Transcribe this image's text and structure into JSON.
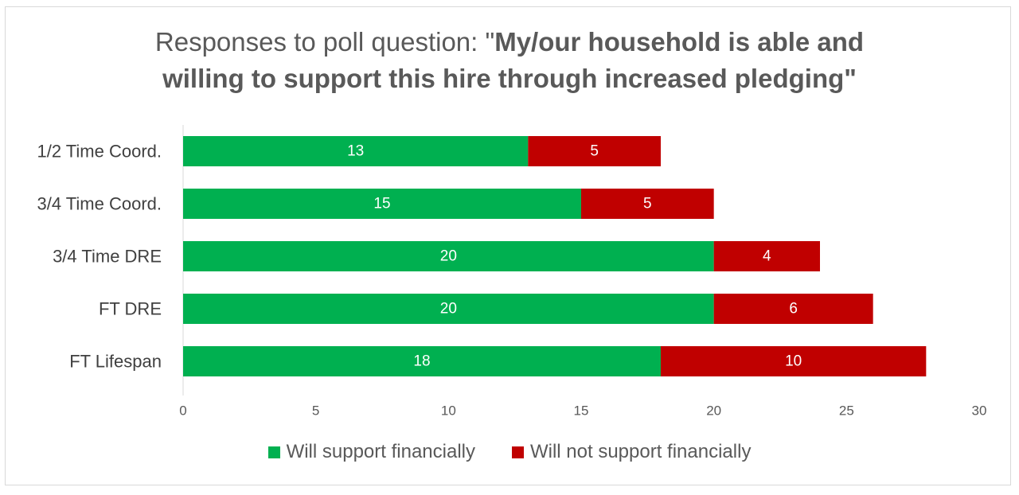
{
  "chart_data": {
    "type": "bar",
    "orientation": "horizontal",
    "stacked": true,
    "title_prefix": "Responses to poll question: \"",
    "title_bold_line1": "My/our household is able and",
    "title_bold_line2": "willing to support this hire through increased pledging\"",
    "categories": [
      "1/2 Time Coord.",
      "3/4 Time Coord.",
      "3/4 Time DRE",
      "FT DRE",
      "FT Lifespan"
    ],
    "series": [
      {
        "name": "Will support financially",
        "color": "#00b050",
        "values": [
          13,
          15,
          20,
          20,
          18
        ]
      },
      {
        "name": "Will not support financially",
        "color": "#c00000",
        "values": [
          5,
          5,
          4,
          6,
          10
        ]
      }
    ],
    "xlim": [
      0,
      30
    ],
    "x_ticks": [
      "0",
      "5",
      "10",
      "15",
      "20",
      "25",
      "30"
    ],
    "grid": false,
    "legend_position": "bottom",
    "data_labels": true
  }
}
